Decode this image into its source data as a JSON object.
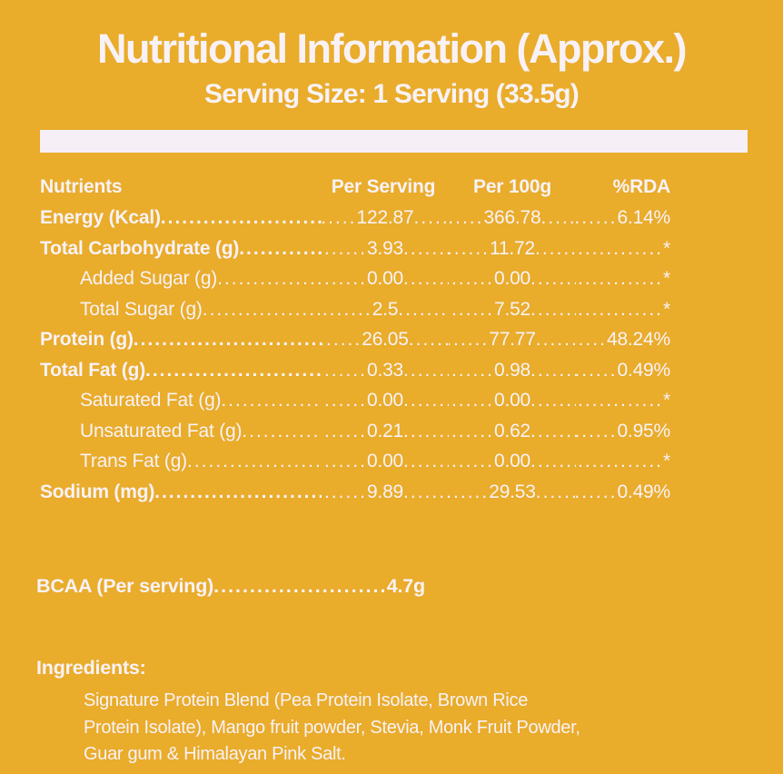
{
  "theme": {
    "background_color": "#E9AC2B",
    "text_color": "#F8F2F6",
    "divider_color": "#F6EFF5"
  },
  "header": {
    "title": "Nutritional Information (Approx.)",
    "subtitle": "Serving Size: 1 Serving (33.5g)"
  },
  "table": {
    "columns": [
      "Nutrients",
      "Per Serving",
      "Per 100g",
      "%RDA"
    ],
    "rows": [
      {
        "label": "Energy (Kcal)",
        "per_serving": "122.87",
        "per_100g": "366.78",
        "rda": "6.14%",
        "bold": true,
        "indent": false
      },
      {
        "label": "Total Carbohydrate (g)",
        "per_serving": "3.93",
        "per_100g": "11.72",
        "rda": "*",
        "bold": true,
        "indent": false
      },
      {
        "label": "Added Sugar (g)",
        "per_serving": "0.00",
        "per_100g": "0.00",
        "rda": "*",
        "bold": false,
        "indent": true
      },
      {
        "label": "Total Sugar (g)",
        "per_serving": "2.5",
        "per_100g": "7.52",
        "rda": "*",
        "bold": false,
        "indent": true
      },
      {
        "label": "Protein (g)",
        "per_serving": "26.05",
        "per_100g": "77.77",
        "rda": "48.24%",
        "bold": true,
        "indent": false
      },
      {
        "label": "Total Fat (g)",
        "per_serving": "0.33",
        "per_100g": "0.98",
        "rda": "0.49%",
        "bold": true,
        "indent": false
      },
      {
        "label": "Saturated Fat (g)",
        "per_serving": "0.00",
        "per_100g": "0.00",
        "rda": "*",
        "bold": false,
        "indent": true
      },
      {
        "label": "Unsaturated Fat (g)",
        "per_serving": "0.21",
        "per_100g": "0.62",
        "rda": "0.95%",
        "bold": false,
        "indent": true
      },
      {
        "label": "Trans Fat (g)",
        "per_serving": "0.00",
        "per_100g": "0.00",
        "rda": "*",
        "bold": false,
        "indent": true
      },
      {
        "label": "Sodium (mg)",
        "per_serving": "9.89",
        "per_100g": "29.53",
        "rda": "0.49%",
        "bold": true,
        "indent": false
      }
    ]
  },
  "bcaa": {
    "label": "BCAA (Per serving)",
    "value": "4.7g"
  },
  "ingredients": {
    "heading": "Ingredients:",
    "lines": [
      "Signature Protein Blend (Pea Protein Isolate, Brown Rice",
      "Protein Isolate), Mango fruit powder, Stevia, Monk Fruit Powder,",
      "Guar gum & Himalayan Pink Salt."
    ]
  }
}
